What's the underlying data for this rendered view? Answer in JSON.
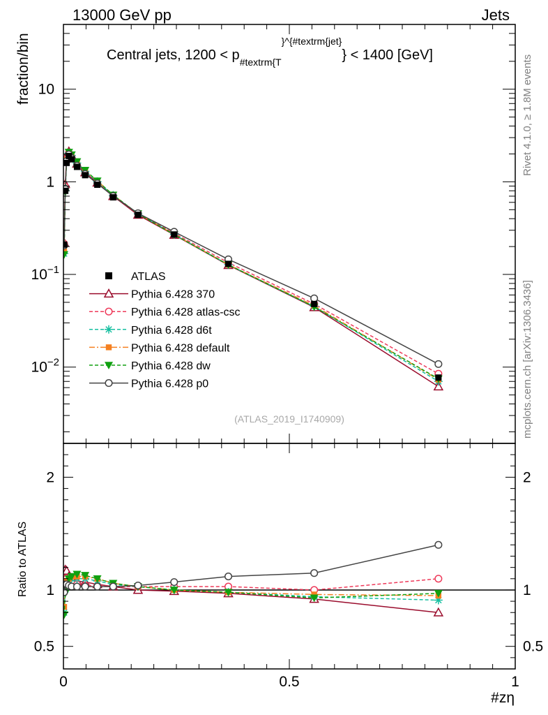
{
  "header": {
    "left": "13000 GeV pp",
    "right": "Jets"
  },
  "side_labels": {
    "rivet": "Rivet 4.1.0, ≥ 1.8M events",
    "mcplots": "mcplots.cern.ch [arXiv:1306.3436]"
  },
  "watermark": "(ATLAS_2019_I1740909)",
  "chart_data": {
    "type": "line",
    "title_prefix": "Central jets, 1200 < p",
    "title_sub": "#textrm{T",
    "title_sup": "}^{#textrm{jet}",
    "title_suffix": "} < 1400 [GeV]",
    "xlabel": "#zη",
    "ylabel_main": "fraction/bin",
    "ylabel_ratio": "Ratio to ATLAS",
    "xlim": [
      0,
      1
    ],
    "ylim_main": [
      0.0015,
      50
    ],
    "ylim_ratio": [
      0.3,
      2.3
    ],
    "y_scale_main": "log",
    "x_ticks": [
      {
        "v": 0,
        "label": "0"
      },
      {
        "v": 0.5,
        "label": "0.5"
      },
      {
        "v": 1,
        "label": "1"
      }
    ],
    "main_ticks": [
      {
        "v": 10,
        "base": "10",
        "exp": ""
      },
      {
        "v": 1,
        "base": "1",
        "exp": ""
      },
      {
        "v": 0.1,
        "base": "10",
        "exp": "−1"
      },
      {
        "v": 0.01,
        "base": "10",
        "exp": "−2"
      }
    ],
    "ratio_ticks": [
      {
        "v": 2,
        "label": "2"
      },
      {
        "v": 1,
        "label": "1"
      },
      {
        "v": 0.5,
        "label": "0.5"
      }
    ],
    "x": [
      0.0015,
      0.004,
      0.007,
      0.012,
      0.018,
      0.03,
      0.048,
      0.075,
      0.11,
      0.165,
      0.245,
      0.365,
      0.555,
      0.83
    ],
    "data": {
      "name": "ATLAS",
      "values": [
        0.21,
        0.8,
        1.6,
        1.9,
        1.75,
        1.45,
        1.18,
        0.93,
        0.68,
        0.44,
        0.27,
        0.13,
        0.048,
        0.0077
      ]
    },
    "series": [
      {
        "name": "Pythia 6.428 370",
        "color": "#9a0c2c",
        "dash": "",
        "marker": "triangle-open",
        "ratio": [
          1.05,
          1.18,
          1.17,
          1.12,
          1.1,
          1.08,
          1.07,
          1.05,
          1.03,
          1.0,
          0.99,
          0.97,
          0.92,
          0.8
        ]
      },
      {
        "name": "Pythia 6.428 atlas-csc",
        "color": "#ee3a5a",
        "dash": "5,3",
        "marker": "circle-open",
        "ratio": [
          1.02,
          1.1,
          1.1,
          1.08,
          1.06,
          1.05,
          1.04,
          1.04,
          1.03,
          1.03,
          1.03,
          1.03,
          1.0,
          1.1
        ]
      },
      {
        "name": "Pythia 6.428 d6t",
        "color": "#16bfa0",
        "dash": "5,3",
        "marker": "star",
        "ratio": [
          0.8,
          1.0,
          1.05,
          1.08,
          1.1,
          1.1,
          1.1,
          1.08,
          1.05,
          1.03,
          1.0,
          0.98,
          0.94,
          0.91
        ]
      },
      {
        "name": "Pythia 6.428 default",
        "color": "#f58020",
        "dash": "8,3,2,3",
        "marker": "square",
        "ratio": [
          0.85,
          1.05,
          1.08,
          1.1,
          1.12,
          1.12,
          1.12,
          1.1,
          1.06,
          1.03,
          1.0,
          0.98,
          0.96,
          0.95
        ]
      },
      {
        "name": "Pythia 6.428 dw",
        "color": "#10a010",
        "dash": "5,3",
        "marker": "triangle-down",
        "ratio": [
          0.78,
          0.97,
          1.03,
          1.1,
          1.12,
          1.14,
          1.13,
          1.1,
          1.06,
          1.03,
          1.0,
          0.98,
          0.93,
          0.97
        ]
      },
      {
        "name": "Pythia 6.428 p0",
        "color": "#444444",
        "dash": "",
        "marker": "circle-open",
        "ratio": [
          0.98,
          1.05,
          1.05,
          1.04,
          1.03,
          1.03,
          1.03,
          1.03,
          1.03,
          1.04,
          1.07,
          1.12,
          1.15,
          1.4
        ]
      }
    ]
  }
}
